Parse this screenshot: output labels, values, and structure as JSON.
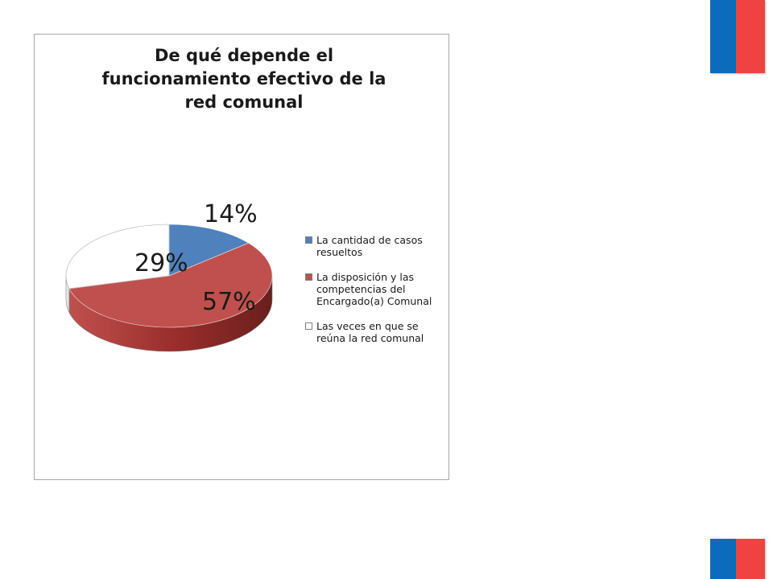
{
  "colors": {
    "flag_blue": "#0b6bbd",
    "flag_red": "#ef4242",
    "series": [
      "#4f81bd",
      "#c0504d",
      "#ffffff"
    ]
  },
  "chart_data": {
    "type": "pie",
    "title": "De qué depende el funcionamiento efectivo de la red comunal",
    "title_lines": [
      "De qué depende el",
      "funcionamiento efectivo de la",
      "red comunal"
    ],
    "categories": [
      "La cantidad de casos resueltos",
      "La disposición y las competencias del Encargado(a) Comunal",
      "Las veces en que se reúna la red comunal"
    ],
    "values": [
      14,
      57,
      29
    ],
    "data_labels": [
      "14%",
      "57%",
      "29%"
    ],
    "legend_lines": [
      [
        "La cantidad de casos",
        "resueltos"
      ],
      [
        "La disposición y las",
        "competencias del",
        "Encargado(a) Comunal"
      ],
      [
        "Las veces en que se",
        "reúna la red comunal"
      ]
    ],
    "legend_position": "right",
    "style": "3d"
  }
}
